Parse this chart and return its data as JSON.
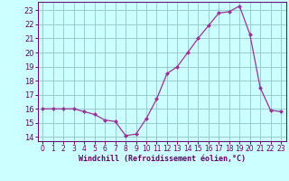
{
  "x": [
    0,
    1,
    2,
    3,
    4,
    5,
    6,
    7,
    8,
    9,
    10,
    11,
    12,
    13,
    14,
    15,
    16,
    17,
    18,
    19,
    20,
    21,
    22,
    23
  ],
  "y": [
    16.0,
    16.0,
    16.0,
    16.0,
    15.8,
    15.6,
    15.2,
    15.1,
    14.1,
    14.2,
    15.3,
    16.7,
    18.5,
    19.0,
    20.0,
    21.0,
    21.9,
    22.8,
    22.9,
    23.3,
    21.3,
    17.5,
    15.9,
    15.8
  ],
  "line_color": "#993399",
  "marker": "D",
  "marker_size": 2,
  "bg_color": "#ccffff",
  "grid_color": "#99cccc",
  "xlabel": "Windchill (Refroidissement éolien,°C)",
  "xlabel_color": "#660066",
  "tick_color": "#660066",
  "axis_color": "#660066",
  "ylim": [
    13.7,
    23.6
  ],
  "xlim": [
    -0.5,
    23.5
  ],
  "yticks": [
    14,
    15,
    16,
    17,
    18,
    19,
    20,
    21,
    22,
    23
  ],
  "xticks": [
    0,
    1,
    2,
    3,
    4,
    5,
    6,
    7,
    8,
    9,
    10,
    11,
    12,
    13,
    14,
    15,
    16,
    17,
    18,
    19,
    20,
    21,
    22,
    23
  ],
  "xlabel_fontsize": 6.0,
  "tick_fontsize": 5.5,
  "ytick_fontsize": 6.0
}
